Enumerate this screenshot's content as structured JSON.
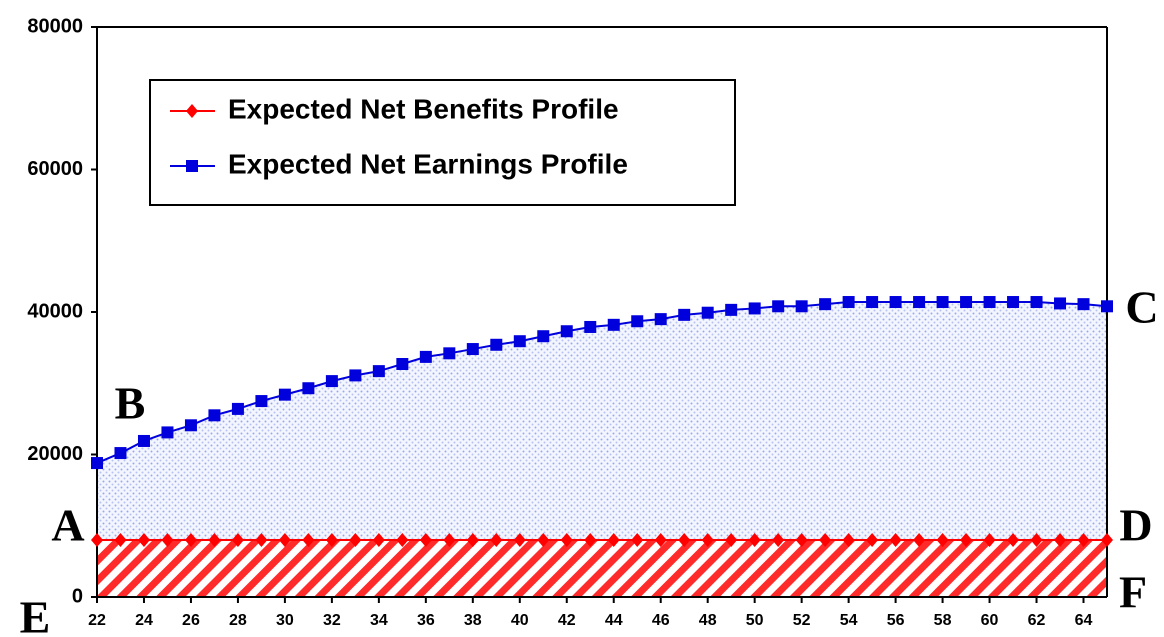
{
  "chart_data": {
    "type": "line",
    "x": [
      22,
      23,
      24,
      25,
      26,
      27,
      28,
      29,
      30,
      31,
      32,
      33,
      34,
      35,
      36,
      37,
      38,
      39,
      40,
      41,
      42,
      43,
      44,
      45,
      46,
      47,
      48,
      49,
      50,
      51,
      52,
      53,
      54,
      55,
      56,
      57,
      58,
      59,
      60,
      61,
      62,
      63,
      64,
      65
    ],
    "xlim": [
      22,
      65
    ],
    "xticks": [
      22,
      24,
      26,
      28,
      30,
      32,
      34,
      36,
      38,
      40,
      42,
      44,
      46,
      48,
      50,
      52,
      54,
      56,
      58,
      60,
      62,
      64
    ],
    "ylim": [
      0,
      80000
    ],
    "yticks": [
      0,
      20000,
      40000,
      60000,
      80000
    ],
    "grid": false,
    "legend": "upper left",
    "series": [
      {
        "name": "Expected Net Benefits Profile",
        "color": "#ff0000",
        "values": [
          8000,
          8000,
          8000,
          8000,
          8000,
          8000,
          8000,
          8000,
          8000,
          8000,
          8000,
          8000,
          8000,
          8000,
          8000,
          8000,
          8000,
          8000,
          8000,
          8000,
          8000,
          8000,
          8000,
          8000,
          8000,
          8000,
          8000,
          8000,
          8000,
          8000,
          8000,
          8000,
          8000,
          8000,
          8000,
          8000,
          8000,
          8000,
          8000,
          8000,
          8000,
          8000,
          8000,
          8000
        ]
      },
      {
        "name": "Expected Net Earnings Profile",
        "color": "#0000dd",
        "values": [
          18800,
          20200,
          21900,
          23100,
          24100,
          25500,
          26400,
          27500,
          28400,
          29300,
          30300,
          31100,
          31700,
          32700,
          33700,
          34200,
          34800,
          35400,
          35900,
          36600,
          37300,
          37900,
          38200,
          38700,
          39000,
          39600,
          39900,
          40300,
          40500,
          40800,
          40800,
          41100,
          41400,
          41400,
          41400,
          41400,
          41400,
          41400,
          41400,
          41400,
          41400,
          41200,
          41100,
          40800
        ]
      }
    ],
    "annotations": [
      "A",
      "B",
      "C",
      "D",
      "E",
      "F"
    ]
  }
}
